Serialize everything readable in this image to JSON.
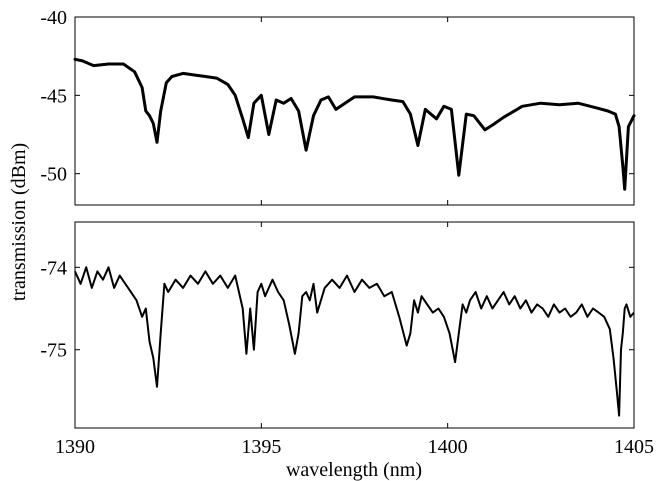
{
  "chart_data": [
    {
      "type": "line",
      "panel": "top",
      "xlim": [
        1390,
        1405
      ],
      "ylim": [
        -52,
        -40
      ],
      "y_ticks": [
        -50,
        -45,
        -40
      ],
      "x_ticks": [
        1390,
        1395,
        1400,
        1405
      ],
      "x_tick_labels_shown": false,
      "grid": false,
      "series": [
        {
          "color": "#000000",
          "x": [
            1390.0,
            1390.2,
            1390.5,
            1390.9,
            1391.3,
            1391.6,
            1391.8,
            1391.9,
            1392.0,
            1392.1,
            1392.2,
            1392.3,
            1392.45,
            1392.6,
            1392.9,
            1393.2,
            1393.5,
            1393.8,
            1394.1,
            1394.3,
            1394.5,
            1394.65,
            1394.8,
            1395.0,
            1395.2,
            1395.4,
            1395.6,
            1395.8,
            1396.0,
            1396.2,
            1396.4,
            1396.6,
            1396.8,
            1397.0,
            1397.5,
            1398.0,
            1398.5,
            1398.8,
            1399.0,
            1399.2,
            1399.4,
            1399.7,
            1399.9,
            1400.1,
            1400.3,
            1400.5,
            1400.7,
            1401.0,
            1401.2,
            1401.5,
            1402.0,
            1402.5,
            1403.0,
            1403.5,
            1404.0,
            1404.3,
            1404.5,
            1404.6,
            1404.7,
            1404.75,
            1404.85,
            1405.0
          ],
          "y": [
            -42.7,
            -42.8,
            -43.1,
            -43.0,
            -43.0,
            -43.5,
            -44.5,
            -46.0,
            -46.3,
            -46.8,
            -48.0,
            -46.0,
            -44.2,
            -43.8,
            -43.6,
            -43.7,
            -43.8,
            -43.9,
            -44.3,
            -45.0,
            -46.5,
            -47.7,
            -45.5,
            -45.0,
            -47.5,
            -45.3,
            -45.5,
            -45.2,
            -46.0,
            -48.5,
            -46.3,
            -45.3,
            -45.1,
            -45.9,
            -45.1,
            -45.1,
            -45.3,
            -45.4,
            -46.2,
            -48.2,
            -45.9,
            -46.5,
            -45.7,
            -45.9,
            -50.1,
            -46.2,
            -46.3,
            -47.2,
            -46.9,
            -46.4,
            -45.7,
            -45.5,
            -45.6,
            -45.5,
            -45.8,
            -46.0,
            -46.2,
            -47.0,
            -49.5,
            -51.0,
            -47.0,
            -46.3
          ]
        }
      ]
    },
    {
      "type": "line",
      "panel": "bottom",
      "xlim": [
        1390,
        1405
      ],
      "ylim": [
        -75.95,
        -73.45
      ],
      "y_ticks": [
        -75,
        -74
      ],
      "x_ticks": [
        1390,
        1395,
        1400,
        1405
      ],
      "x_tick_labels": [
        "1390",
        "1395",
        "1400",
        "1405"
      ],
      "grid": false,
      "series": [
        {
          "color": "#000000",
          "x": [
            1390.0,
            1390.15,
            1390.3,
            1390.45,
            1390.6,
            1390.75,
            1390.9,
            1391.05,
            1391.2,
            1391.35,
            1391.5,
            1391.65,
            1391.8,
            1391.9,
            1392.0,
            1392.1,
            1392.2,
            1392.3,
            1392.4,
            1392.5,
            1392.7,
            1392.9,
            1393.1,
            1393.3,
            1393.5,
            1393.7,
            1393.9,
            1394.1,
            1394.3,
            1394.5,
            1394.6,
            1394.7,
            1394.8,
            1394.9,
            1395.0,
            1395.1,
            1395.2,
            1395.3,
            1395.45,
            1395.6,
            1395.75,
            1395.9,
            1396.0,
            1396.1,
            1396.2,
            1396.3,
            1396.4,
            1396.5,
            1396.7,
            1396.9,
            1397.1,
            1397.3,
            1397.5,
            1397.7,
            1397.9,
            1398.1,
            1398.3,
            1398.5,
            1398.7,
            1398.9,
            1399.0,
            1399.1,
            1399.2,
            1399.3,
            1399.45,
            1399.6,
            1399.75,
            1399.9,
            1400.05,
            1400.2,
            1400.3,
            1400.4,
            1400.5,
            1400.6,
            1400.75,
            1400.9,
            1401.05,
            1401.2,
            1401.35,
            1401.5,
            1401.65,
            1401.8,
            1401.95,
            1402.1,
            1402.25,
            1402.4,
            1402.55,
            1402.7,
            1402.85,
            1403.0,
            1403.15,
            1403.3,
            1403.45,
            1403.6,
            1403.75,
            1403.9,
            1404.05,
            1404.2,
            1404.35,
            1404.45,
            1404.55,
            1404.6,
            1404.65,
            1404.7,
            1404.75,
            1404.8,
            1404.9,
            1405.0
          ],
          "y": [
            -74.05,
            -74.2,
            -74.0,
            -74.25,
            -74.05,
            -74.15,
            -74.0,
            -74.25,
            -74.1,
            -74.2,
            -74.3,
            -74.4,
            -74.6,
            -74.5,
            -74.9,
            -75.1,
            -75.45,
            -74.8,
            -74.2,
            -74.3,
            -74.15,
            -74.25,
            -74.1,
            -74.2,
            -74.05,
            -74.2,
            -74.1,
            -74.25,
            -74.1,
            -74.5,
            -75.05,
            -74.5,
            -75.0,
            -74.3,
            -74.2,
            -74.35,
            -74.25,
            -74.15,
            -74.3,
            -74.4,
            -74.7,
            -75.05,
            -74.8,
            -74.35,
            -74.3,
            -74.4,
            -74.2,
            -74.55,
            -74.25,
            -74.15,
            -74.25,
            -74.1,
            -74.3,
            -74.15,
            -74.25,
            -74.2,
            -74.35,
            -74.3,
            -74.6,
            -74.95,
            -74.8,
            -74.4,
            -74.55,
            -74.35,
            -74.45,
            -74.55,
            -74.5,
            -74.6,
            -74.8,
            -75.15,
            -74.8,
            -74.45,
            -74.55,
            -74.4,
            -74.3,
            -74.5,
            -74.35,
            -74.5,
            -74.4,
            -74.3,
            -74.45,
            -74.35,
            -74.5,
            -74.4,
            -74.55,
            -74.45,
            -74.5,
            -74.6,
            -74.45,
            -74.55,
            -74.5,
            -74.6,
            -74.55,
            -74.45,
            -74.6,
            -74.5,
            -74.55,
            -74.6,
            -74.75,
            -75.1,
            -75.55,
            -75.8,
            -75.0,
            -74.8,
            -74.5,
            -74.45,
            -74.6,
            -74.55
          ]
        }
      ]
    }
  ],
  "shared": {
    "ylabel": "transmission (dBm)",
    "xlabel": "wavelength (nm)"
  }
}
